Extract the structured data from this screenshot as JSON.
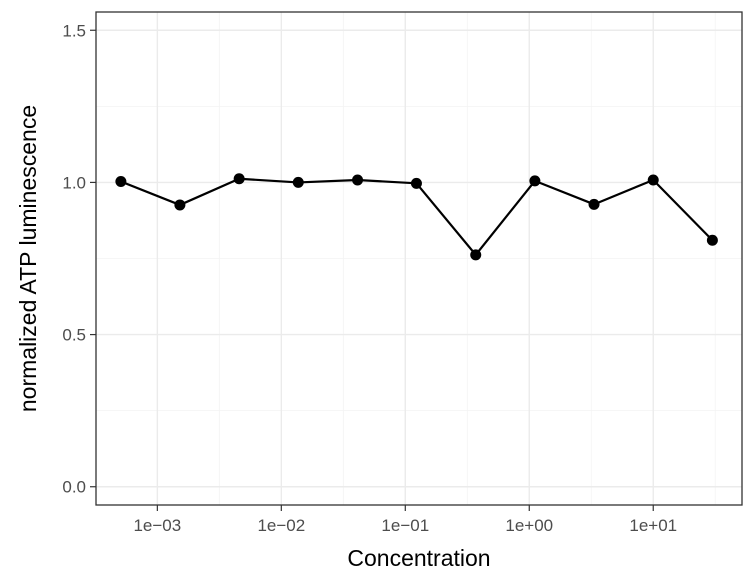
{
  "chart_data": {
    "type": "line",
    "title": "",
    "xlabel": "Concentration",
    "ylabel": "normalized ATP luminescence",
    "x_scale": "log10",
    "xlim": [
      0.00032,
      52
    ],
    "ylim": [
      -0.06,
      1.56
    ],
    "grid": true,
    "legend": "none",
    "x_ticks": [
      {
        "value": 0.001,
        "label": "1e−03"
      },
      {
        "value": 0.01,
        "label": "1e−02"
      },
      {
        "value": 0.1,
        "label": "1e−01"
      },
      {
        "value": 1,
        "label": "1e+00"
      },
      {
        "value": 10,
        "label": "1e+01"
      }
    ],
    "y_ticks": [
      {
        "value": 0.0,
        "label": "0.0"
      },
      {
        "value": 0.5,
        "label": "0.5"
      },
      {
        "value": 1.0,
        "label": "1.0"
      },
      {
        "value": 1.5,
        "label": "1.5"
      }
    ],
    "series": [
      {
        "color": "#000000",
        "points": [
          {
            "x": 0.000508,
            "y": 1.003
          },
          {
            "x": 0.00152,
            "y": 0.926
          },
          {
            "x": 0.00457,
            "y": 1.012
          },
          {
            "x": 0.0137,
            "y": 1.0
          },
          {
            "x": 0.0412,
            "y": 1.008
          },
          {
            "x": 0.123,
            "y": 0.997
          },
          {
            "x": 0.37,
            "y": 0.762
          },
          {
            "x": 1.11,
            "y": 1.005
          },
          {
            "x": 3.33,
            "y": 0.928
          },
          {
            "x": 10.0,
            "y": 1.008
          },
          {
            "x": 30.0,
            "y": 0.81
          }
        ]
      }
    ]
  }
}
